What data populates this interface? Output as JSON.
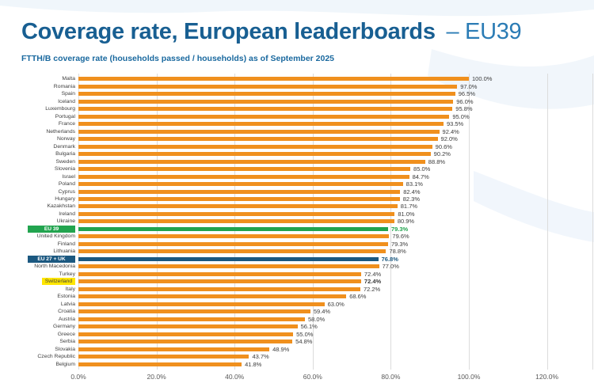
{
  "title": {
    "main": "Coverage rate, European leaderboards",
    "suffix": "– EU39"
  },
  "subtitle": "FTTH/B coverage rate (households passed / households) as of September 2025",
  "colors": {
    "title_blue": "#185F92",
    "bar_orange": "#F0901E",
    "eu39_green": "#22A44F",
    "eu27uk_blue": "#1B5880",
    "switzerland_highlight_yellow": "#FFE600",
    "gridline_gray": "#DCDCDC"
  },
  "chart_data": {
    "type": "bar",
    "orientation": "horizontal",
    "title": "Coverage rate, European leaderboards – EU39",
    "subtitle": "FTTH/B coverage rate (households passed / households) as of September 2025",
    "xlabel": "",
    "ylabel": "",
    "xlim": [
      0,
      120
    ],
    "x_ticks": [
      "0.0%",
      "20.0%",
      "40.0%",
      "60.0%",
      "80.0%",
      "100.0%",
      "120.0%"
    ],
    "grid": true,
    "legend": null,
    "rows": [
      {
        "label": "Malta",
        "value": 100.0,
        "display": "100.0%",
        "style": "default"
      },
      {
        "label": "Romania",
        "value": 97.0,
        "display": "97.0%",
        "style": "default"
      },
      {
        "label": "Spain",
        "value": 96.5,
        "display": "96.5%",
        "style": "default"
      },
      {
        "label": "Iceland",
        "value": 96.0,
        "display": "96.0%",
        "style": "default"
      },
      {
        "label": "Luxembourg",
        "value": 95.8,
        "display": "95.8%",
        "style": "default"
      },
      {
        "label": "Portugal",
        "value": 95.0,
        "display": "95.0%",
        "style": "default"
      },
      {
        "label": "France",
        "value": 93.5,
        "display": "93.5%",
        "style": "default"
      },
      {
        "label": "Netherlands",
        "value": 92.4,
        "display": "92.4%",
        "style": "default"
      },
      {
        "label": "Norway",
        "value": 92.0,
        "display": "92.0%",
        "style": "default"
      },
      {
        "label": "Denmark",
        "value": 90.6,
        "display": "90.6%",
        "style": "default"
      },
      {
        "label": "Bulgaria",
        "value": 90.2,
        "display": "90.2%",
        "style": "default"
      },
      {
        "label": "Sweden",
        "value": 88.8,
        "display": "88.8%",
        "style": "default"
      },
      {
        "label": "Slovenia",
        "value": 85.0,
        "display": "85.0%",
        "style": "default"
      },
      {
        "label": "Israel",
        "value": 84.7,
        "display": "84.7%",
        "style": "default"
      },
      {
        "label": "Poland",
        "value": 83.1,
        "display": "83.1%",
        "style": "default"
      },
      {
        "label": "Cyprus",
        "value": 82.4,
        "display": "82.4%",
        "style": "default"
      },
      {
        "label": "Hungary",
        "value": 82.3,
        "display": "82.3%",
        "style": "default"
      },
      {
        "label": "Kazakhstan",
        "value": 81.7,
        "display": "81.7%",
        "style": "default"
      },
      {
        "label": "Ireland",
        "value": 81.0,
        "display": "81.0%",
        "style": "default"
      },
      {
        "label": "Ukraine",
        "value": 80.9,
        "display": "80.9%",
        "style": "default"
      },
      {
        "label": "EU 39",
        "value": 79.3,
        "display": "79.3%",
        "style": "eu39"
      },
      {
        "label": "United Kingdom",
        "value": 79.6,
        "display": "79.6%",
        "style": "default"
      },
      {
        "label": "Finland",
        "value": 79.3,
        "display": "79.3%",
        "style": "default"
      },
      {
        "label": "Lithuania",
        "value": 78.8,
        "display": "78.8%",
        "style": "default"
      },
      {
        "label": "EU 27 + UK",
        "value": 76.8,
        "display": "76.8%",
        "style": "eu27uk"
      },
      {
        "label": "North Macedonia",
        "value": 77.0,
        "display": "77.0%",
        "style": "default"
      },
      {
        "label": "Turkey",
        "value": 72.4,
        "display": "72.4%",
        "style": "default"
      },
      {
        "label": "Switzerland",
        "value": 72.4,
        "display": "72.4%",
        "style": "switzerland"
      },
      {
        "label": "Italy",
        "value": 72.2,
        "display": "72.2%",
        "style": "default"
      },
      {
        "label": "Estonia",
        "value": 68.6,
        "display": "68.6%",
        "style": "default"
      },
      {
        "label": "Latvia",
        "value": 63.0,
        "display": "63.0%",
        "style": "default"
      },
      {
        "label": "Croatia",
        "value": 59.4,
        "display": "59.4%",
        "style": "default"
      },
      {
        "label": "Austria",
        "value": 58.0,
        "display": "58.0%",
        "style": "default"
      },
      {
        "label": "Germany",
        "value": 56.1,
        "display": "56.1%",
        "style": "default"
      },
      {
        "label": "Greece",
        "value": 55.0,
        "display": "55.0%",
        "style": "default"
      },
      {
        "label": "Serbia",
        "value": 54.8,
        "display": "54.8%",
        "style": "default"
      },
      {
        "label": "Slovakia",
        "value": 48.9,
        "display": "48.9%",
        "style": "default"
      },
      {
        "label": "Czech Republic",
        "value": 43.7,
        "display": "43.7%",
        "style": "default"
      },
      {
        "label": "Belgium",
        "value": 41.8,
        "display": "41.8%",
        "style": "default"
      }
    ]
  }
}
